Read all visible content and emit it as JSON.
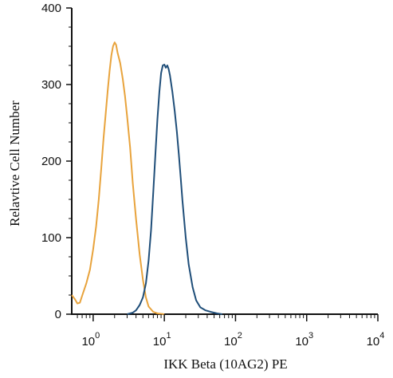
{
  "chart_data": {
    "type": "line",
    "xlabel": "IKK Beta (10AG2) PE",
    "ylabel": "Relavtive Cell Number",
    "x_scale": "log",
    "xlim": [
      0.5,
      10000
    ],
    "ylim": [
      0,
      400
    ],
    "x_ticks": [
      {
        "value": 1,
        "base": "10",
        "exp": "0"
      },
      {
        "value": 10,
        "base": "10",
        "exp": "1"
      },
      {
        "value": 100,
        "base": "10",
        "exp": "2"
      },
      {
        "value": 1000,
        "base": "10",
        "exp": "3"
      },
      {
        "value": 10000,
        "base": "10",
        "exp": "4"
      }
    ],
    "y_ticks": [
      "0",
      "100",
      "200",
      "300",
      "400"
    ],
    "series": [
      {
        "color": "#E8A33C",
        "points": [
          [
            0.5,
            25
          ],
          [
            0.55,
            20
          ],
          [
            0.6,
            14
          ],
          [
            0.65,
            15
          ],
          [
            0.7,
            24
          ],
          [
            0.8,
            40
          ],
          [
            0.9,
            58
          ],
          [
            1.0,
            85
          ],
          [
            1.1,
            115
          ],
          [
            1.2,
            150
          ],
          [
            1.3,
            190
          ],
          [
            1.4,
            230
          ],
          [
            1.5,
            262
          ],
          [
            1.6,
            292
          ],
          [
            1.7,
            318
          ],
          [
            1.8,
            338
          ],
          [
            1.9,
            350
          ],
          [
            2.0,
            355
          ],
          [
            2.1,
            352
          ],
          [
            2.2,
            342
          ],
          [
            2.4,
            328
          ],
          [
            2.6,
            308
          ],
          [
            2.8,
            285
          ],
          [
            3.0,
            258
          ],
          [
            3.3,
            218
          ],
          [
            3.6,
            172
          ],
          [
            4.0,
            125
          ],
          [
            4.5,
            78
          ],
          [
            5.0,
            45
          ],
          [
            5.5,
            22
          ],
          [
            6.0,
            10
          ],
          [
            7.0,
            3
          ],
          [
            8.0,
            1
          ],
          [
            10,
            0
          ]
        ]
      },
      {
        "color": "#1F4E79",
        "points": [
          [
            3.0,
            0
          ],
          [
            3.6,
            2
          ],
          [
            4.0,
            5
          ],
          [
            4.5,
            12
          ],
          [
            5.0,
            22
          ],
          [
            5.5,
            40
          ],
          [
            6.0,
            70
          ],
          [
            6.5,
            110
          ],
          [
            7.0,
            160
          ],
          [
            7.5,
            210
          ],
          [
            8.0,
            255
          ],
          [
            8.5,
            290
          ],
          [
            9.0,
            315
          ],
          [
            9.5,
            325
          ],
          [
            10.0,
            326
          ],
          [
            10.5,
            322
          ],
          [
            11.0,
            325
          ],
          [
            11.5,
            320
          ],
          [
            12.0,
            312
          ],
          [
            13,
            290
          ],
          [
            14,
            265
          ],
          [
            15,
            238
          ],
          [
            16,
            208
          ],
          [
            17,
            178
          ],
          [
            18,
            148
          ],
          [
            20,
            100
          ],
          [
            22,
            65
          ],
          [
            25,
            35
          ],
          [
            28,
            18
          ],
          [
            32,
            9
          ],
          [
            38,
            5
          ],
          [
            45,
            3
          ],
          [
            55,
            1
          ],
          [
            65,
            0
          ]
        ]
      }
    ]
  }
}
